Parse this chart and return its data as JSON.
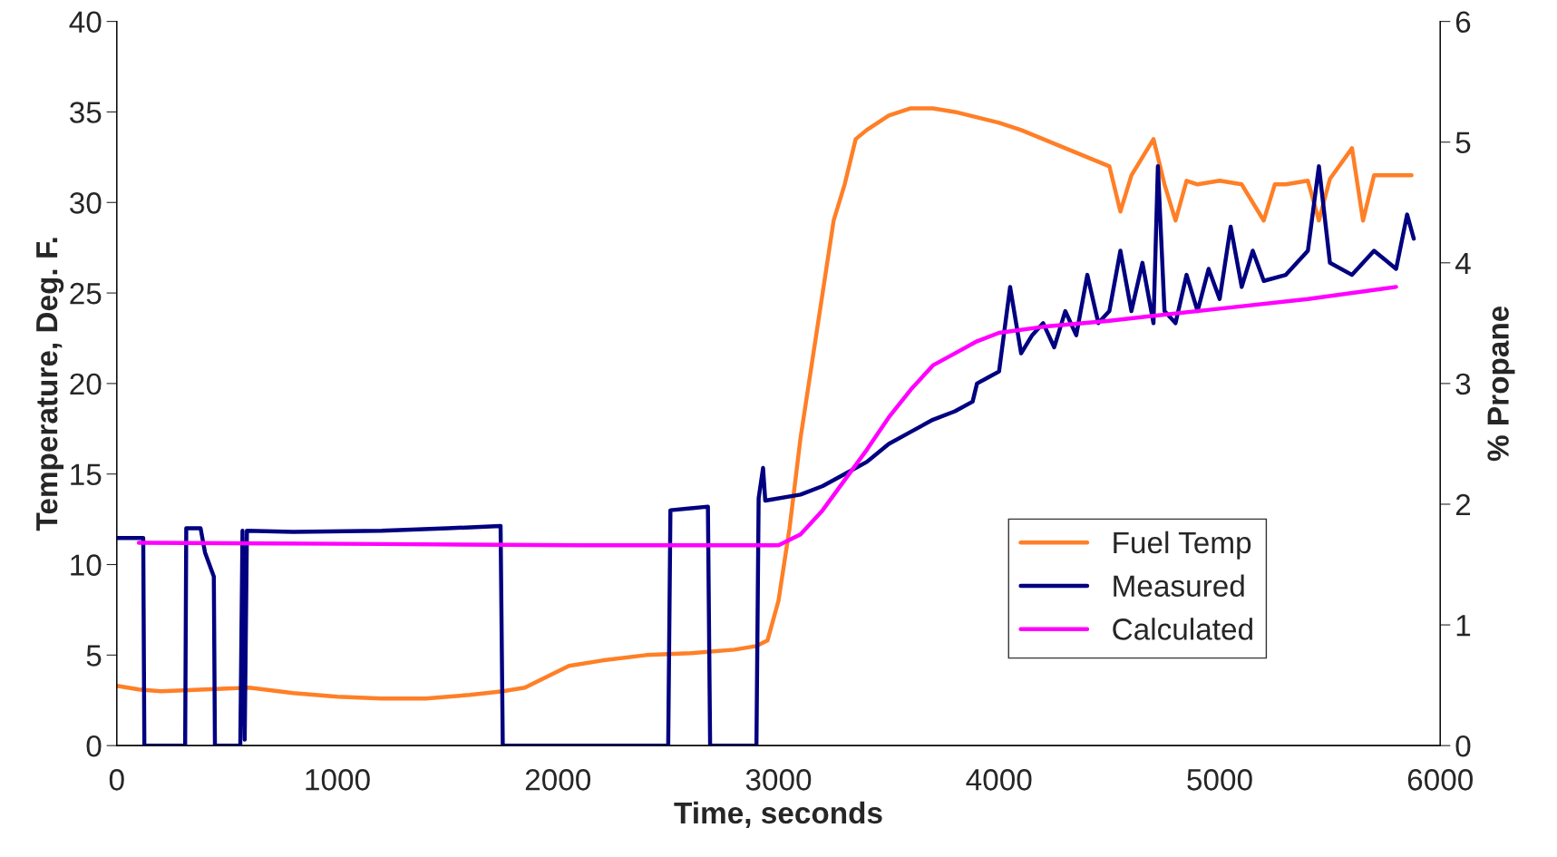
{
  "chart_data": {
    "type": "line",
    "xlabel": "Time, seconds",
    "ylabel": "Temperature, Deg. F.",
    "y2label": "% Propane",
    "xlim": [
      0,
      6000
    ],
    "xticks": [
      0,
      1000,
      2000,
      3000,
      4000,
      5000,
      6000
    ],
    "ylim": [
      0,
      40
    ],
    "yticks": [
      0,
      5,
      10,
      15,
      20,
      25,
      30,
      35,
      40
    ],
    "y2lim": [
      0,
      6
    ],
    "y2ticks": [
      0,
      1,
      2,
      3,
      4,
      5,
      6
    ],
    "grid": false,
    "legend": "lower right",
    "marker": "none",
    "line_style": "solid",
    "series": [
      {
        "name": "Fuel Temp",
        "color": "#ff7f27",
        "x": [
          0,
          100,
          200,
          400,
          600,
          800,
          1000,
          1200,
          1400,
          1600,
          1750,
          1850,
          1950,
          2050,
          2200,
          2400,
          2600,
          2800,
          2900,
          2950,
          3000,
          3050,
          3100,
          3150,
          3200,
          3250,
          3300,
          3350,
          3400,
          3500,
          3600,
          3700,
          3800,
          3900,
          4000,
          4100,
          4200,
          4300,
          4400,
          4500,
          4550,
          4600,
          4700,
          4750,
          4800,
          4850,
          4900,
          5000,
          5100,
          5200,
          5250,
          5300,
          5400,
          5450,
          5500,
          5600,
          5650,
          5700,
          5800,
          5870
        ],
        "values": [
          3.3,
          3.1,
          3.0,
          3.1,
          3.2,
          2.9,
          2.7,
          2.6,
          2.6,
          2.8,
          3.0,
          3.2,
          3.8,
          4.4,
          4.7,
          5.0,
          5.1,
          5.3,
          5.5,
          5.8,
          8,
          12,
          17,
          21,
          25,
          29,
          31,
          33.5,
          34,
          34.8,
          35.2,
          35.2,
          35,
          34.7,
          34.4,
          34,
          33.5,
          33,
          32.5,
          32,
          29.5,
          31.5,
          33.5,
          31,
          29,
          31.2,
          31,
          31.2,
          31,
          29,
          31,
          31,
          31.2,
          29,
          31.3,
          33,
          29,
          31.5,
          31.5,
          31.5
        ]
      },
      {
        "name": "Measured",
        "color": "#000080",
        "axis": "y2",
        "x": [
          0,
          120,
          125,
          310,
          315,
          380,
          400,
          440,
          445,
          560,
          570,
          580,
          590,
          800,
          1200,
          1500,
          1740,
          1750,
          2500,
          2510,
          2680,
          2690,
          2900,
          2910,
          2930,
          2940,
          3100,
          3200,
          3300,
          3400,
          3500,
          3600,
          3700,
          3800,
          3880,
          3900,
          3950,
          4000,
          4050,
          4100,
          4150,
          4200,
          4250,
          4300,
          4350,
          4400,
          4450,
          4500,
          4550,
          4600,
          4650,
          4700,
          4720,
          4750,
          4800,
          4850,
          4900,
          4950,
          5000,
          5050,
          5100,
          5150,
          5200,
          5300,
          5400,
          5450,
          5500,
          5600,
          5700,
          5800,
          5850,
          5880
        ],
        "values": [
          1.72,
          1.72,
          0,
          0,
          1.8,
          1.8,
          1.6,
          1.4,
          0,
          0,
          1.78,
          0.05,
          1.78,
          1.77,
          1.78,
          1.8,
          1.82,
          0,
          0,
          1.95,
          1.98,
          0,
          0,
          2.05,
          2.3,
          2.03,
          2.08,
          2.15,
          2.25,
          2.35,
          2.5,
          2.6,
          2.7,
          2.77,
          2.85,
          3.0,
          3.05,
          3.1,
          3.8,
          3.25,
          3.4,
          3.5,
          3.3,
          3.6,
          3.4,
          3.9,
          3.5,
          3.6,
          4.1,
          3.6,
          4.0,
          3.5,
          4.8,
          3.6,
          3.5,
          3.9,
          3.6,
          3.95,
          3.7,
          4.3,
          3.8,
          4.1,
          3.85,
          3.9,
          4.1,
          4.8,
          4.0,
          3.9,
          4.1,
          3.95,
          4.4,
          4.2
        ]
      },
      {
        "name": "Calculated",
        "color": "#ff00ff",
        "axis": "y2",
        "x": [
          100,
          1200,
          2100,
          3000,
          3100,
          3200,
          3300,
          3400,
          3500,
          3600,
          3700,
          3800,
          3900,
          4000,
          4200,
          4500,
          5000,
          5400,
          5800
        ],
        "values": [
          1.68,
          1.67,
          1.66,
          1.66,
          1.75,
          1.95,
          2.2,
          2.45,
          2.72,
          2.95,
          3.15,
          3.25,
          3.35,
          3.42,
          3.47,
          3.52,
          3.62,
          3.7,
          3.8
        ]
      }
    ]
  }
}
